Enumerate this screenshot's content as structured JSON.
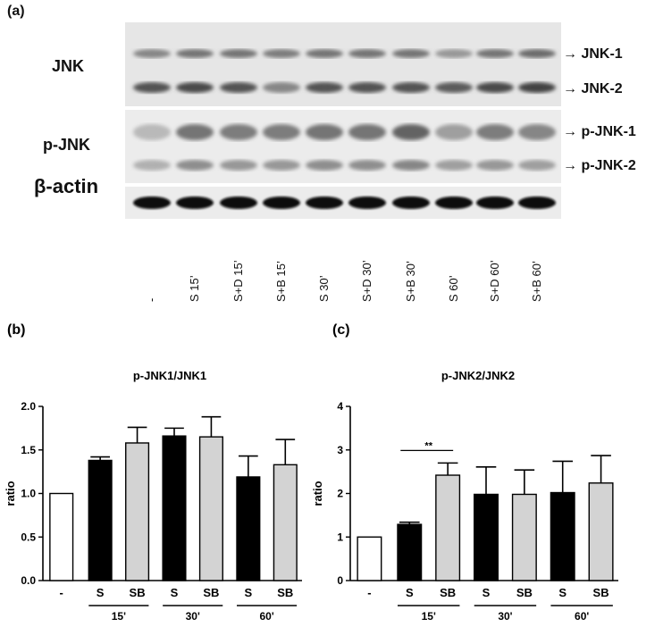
{
  "panel_a": {
    "label": "(a)",
    "rows": {
      "jnk": "JNK",
      "pjnk": "p-JNK",
      "actin": "β-actin"
    },
    "bands": {
      "jnk1": "JNK-1",
      "jnk2": "JNK-2",
      "pjnk1": "p-JNK-1",
      "pjnk2": "p-JNK-2"
    },
    "lanes": [
      "-",
      "S 15’",
      "S+D 15’",
      "S+B 15’",
      "S 30’",
      "S+D 30’",
      "S+B 30’",
      "S 60’",
      "S+D 60’",
      "S+B 60’"
    ],
    "arrow": "→"
  },
  "chart_data": [
    {
      "type": "bar",
      "panel": "(b)",
      "title": "p-JNK1/JNK1",
      "ylabel": "ratio",
      "ylim": [
        0,
        2.0
      ],
      "yticks": [
        "0.0",
        "0.5",
        "1.0",
        "1.5",
        "2.0"
      ],
      "categories": [
        "-",
        "S",
        "SB",
        "S",
        "SB",
        "S",
        "SB"
      ],
      "groups": [
        "15'",
        "30'",
        "60'"
      ],
      "values": [
        1.0,
        1.38,
        1.58,
        1.66,
        1.65,
        1.19,
        1.33
      ],
      "errors": [
        0,
        0.04,
        0.18,
        0.09,
        0.23,
        0.24,
        0.29
      ],
      "fills": [
        "#ffffff",
        "#000000",
        "#d3d3d3",
        "#000000",
        "#d3d3d3",
        "#000000",
        "#d3d3d3"
      ]
    },
    {
      "type": "bar",
      "panel": "(c)",
      "title": "p-JNK2/JNK2",
      "ylabel": "ratio",
      "ylim": [
        0,
        4
      ],
      "yticks": [
        "0",
        "1",
        "2",
        "3",
        "4"
      ],
      "categories": [
        "-",
        "S",
        "SB",
        "S",
        "SB",
        "S",
        "SB"
      ],
      "groups": [
        "15'",
        "30'",
        "60'"
      ],
      "values": [
        1.0,
        1.29,
        2.42,
        1.98,
        1.98,
        2.02,
        2.24
      ],
      "errors": [
        0,
        0.05,
        0.28,
        0.63,
        0.56,
        0.72,
        0.63
      ],
      "fills": [
        "#ffffff",
        "#000000",
        "#d3d3d3",
        "#000000",
        "#d3d3d3",
        "#000000",
        "#d3d3d3"
      ],
      "annotation": "**"
    }
  ]
}
